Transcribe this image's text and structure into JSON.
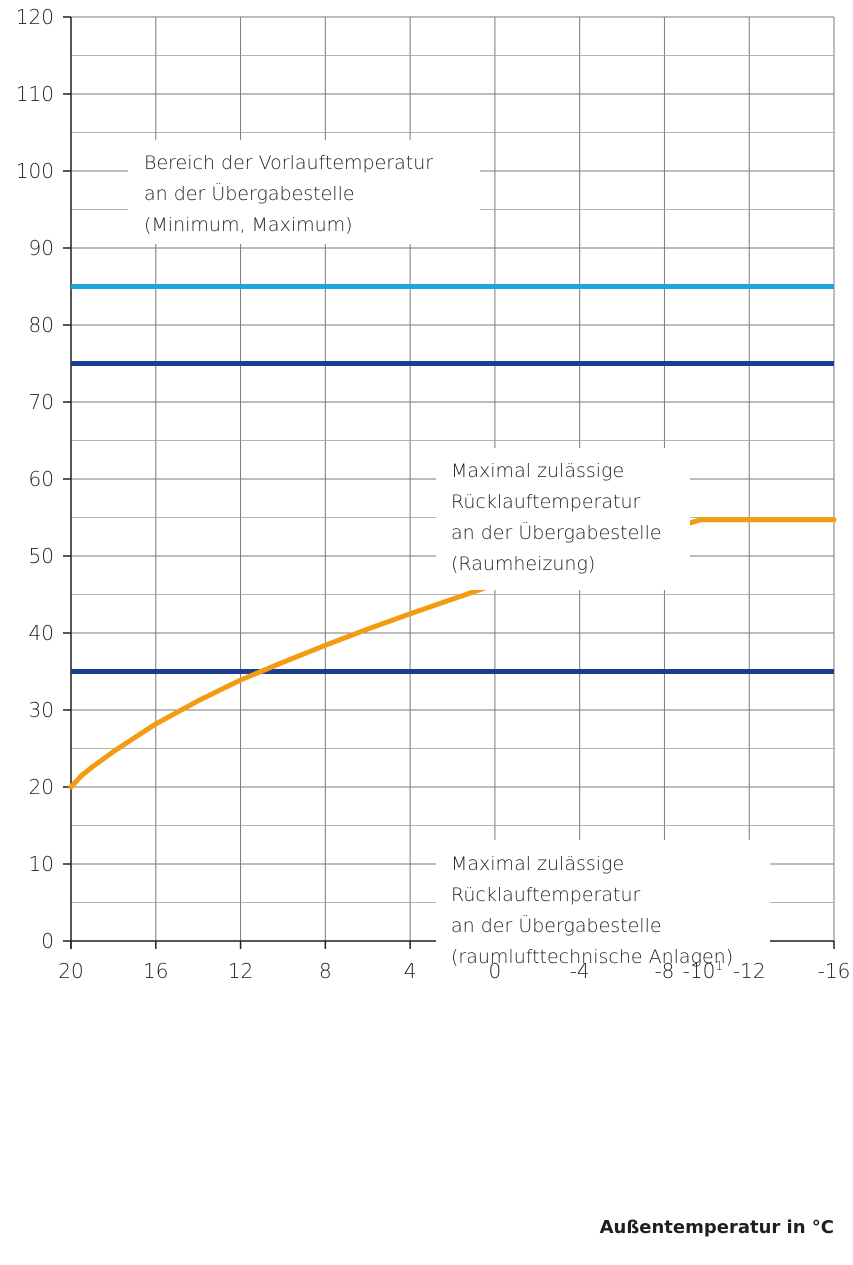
{
  "chart_data": {
    "type": "line",
    "title": "",
    "xlabel": "Außentemperatur in °C",
    "ylabel": "",
    "xlim": [
      20,
      -16
    ],
    "ylim": [
      0,
      120
    ],
    "grid": true,
    "x_ticks": [
      {
        "value": 20,
        "label": "20"
      },
      {
        "value": 16,
        "label": "16"
      },
      {
        "value": 12,
        "label": "12"
      },
      {
        "value": 8,
        "label": "8"
      },
      {
        "value": 4,
        "label": "4"
      },
      {
        "value": 0,
        "label": "0"
      },
      {
        "value": -4,
        "label": "-4"
      },
      {
        "value": -8,
        "label": "-8"
      },
      {
        "value": -10,
        "label": "-10",
        "superscript": "1"
      },
      {
        "value": -12,
        "label": "-12"
      },
      {
        "value": -16,
        "label": "-16"
      }
    ],
    "x_grid": [
      20,
      16,
      12,
      8,
      4,
      0,
      -4,
      -8,
      -12,
      -16
    ],
    "y_ticks": [
      0,
      10,
      20,
      30,
      40,
      50,
      60,
      70,
      80,
      90,
      100,
      110,
      120
    ],
    "y_minor_grid": [
      5,
      15,
      25,
      35,
      45,
      55,
      65,
      75,
      85,
      95,
      105,
      115
    ],
    "series": [
      {
        "color": "#1aa7d8",
        "kind": "horizontal",
        "y": 85
      },
      {
        "color": "#1a3e8f",
        "kind": "horizontal",
        "y": 75
      },
      {
        "color": "#1a3e8f",
        "kind": "horizontal",
        "y": 35
      },
      {
        "color": "#f39c12",
        "kind": "curve",
        "x": [
          20,
          19.5,
          19,
          18,
          17,
          16,
          14,
          12,
          10,
          8,
          6,
          4,
          2,
          0,
          -2,
          -4,
          -6,
          -8,
          -9.7,
          -12,
          -14,
          -16
        ],
        "y": [
          20,
          21.5,
          22.6,
          24.6,
          26.4,
          28.2,
          31.2,
          33.9,
          36.2,
          38.4,
          40.5,
          42.5,
          44.4,
          46.3,
          48.1,
          49.9,
          51.6,
          53.3,
          54.7,
          54.7,
          54.7,
          54.7
        ]
      }
    ],
    "annotations": [
      {
        "id": "vorlauf",
        "lines": [
          "Bereich der Vorlauftemperatur",
          "an der Übergabestelle",
          "(Minimum, Maximum)"
        ]
      },
      {
        "id": "raumheizung",
        "lines": [
          "Maximal zulässige",
          "Rücklauftemperatur",
          "an der Übergabestelle",
          "(Raumheizung)"
        ]
      },
      {
        "id": "rlt",
        "lines": [
          "Maximal zulässige",
          "Rücklauftemperatur",
          "an der Übergabestelle",
          "(raumlufttechnische Anlagen)"
        ]
      }
    ]
  }
}
